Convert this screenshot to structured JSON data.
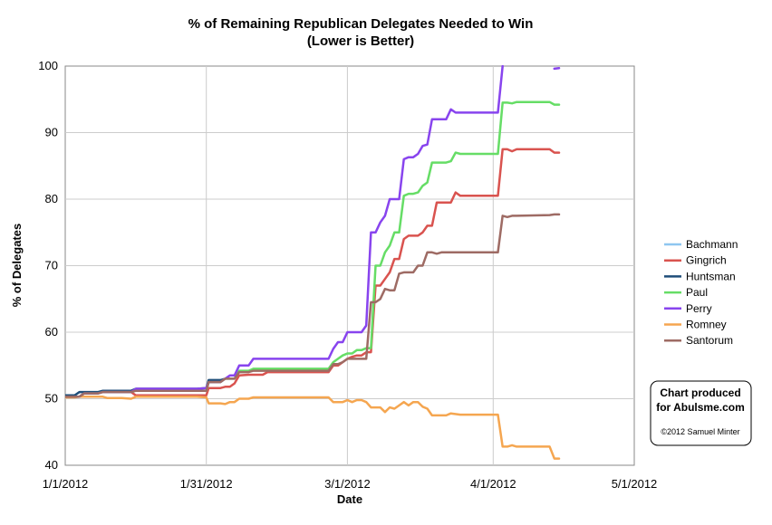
{
  "chart_data": {
    "type": "line",
    "title": "% of Remaining Republican Delegates Needed to Win",
    "subtitle": "(Lower is Better)",
    "xlabel": "Date",
    "ylabel": "% of Delegates",
    "x_start": "1/1/2012",
    "xlim": [
      0,
      121
    ],
    "ylim": [
      40,
      100
    ],
    "x_ticks": [
      {
        "label": "1/1/2012",
        "day": 0
      },
      {
        "label": "1/31/2012",
        "day": 30
      },
      {
        "label": "3/1/2012",
        "day": 60
      },
      {
        "label": "4/1/2012",
        "day": 91
      },
      {
        "label": "5/1/2012",
        "day": 121
      }
    ],
    "y_ticks": [
      40,
      50,
      60,
      70,
      80,
      90,
      100
    ],
    "grid": true,
    "legend_position": "right",
    "series": [
      {
        "name": "Bachmann",
        "color": "#8ec6f0",
        "points": []
      },
      {
        "name": "Gingrich",
        "color": "#d9534f",
        "points": [
          [
            0,
            50.3
          ],
          [
            3,
            50.3
          ],
          [
            4,
            50.8
          ],
          [
            7,
            50.8
          ],
          [
            8,
            51.0
          ],
          [
            14,
            51.0
          ],
          [
            15,
            50.5
          ],
          [
            28,
            50.5
          ],
          [
            30,
            50.5
          ],
          [
            30.5,
            51.6
          ],
          [
            33,
            51.6
          ],
          [
            34,
            51.8
          ],
          [
            35,
            51.8
          ],
          [
            36,
            52.3
          ],
          [
            37,
            53.5
          ],
          [
            39,
            53.6
          ],
          [
            42,
            53.6
          ],
          [
            43,
            54.0
          ],
          [
            56,
            54.0
          ],
          [
            57,
            55.0
          ],
          [
            58,
            55.0
          ],
          [
            59,
            55.5
          ],
          [
            60,
            56.0
          ],
          [
            61,
            56.3
          ],
          [
            62,
            56.5
          ],
          [
            63,
            56.5
          ],
          [
            64,
            57.0
          ],
          [
            65,
            57.0
          ],
          [
            66,
            67.0
          ],
          [
            67,
            67.0
          ],
          [
            68,
            68.0
          ],
          [
            69,
            69.0
          ],
          [
            70,
            71.0
          ],
          [
            71,
            71.0
          ],
          [
            72,
            74.0
          ],
          [
            73,
            74.5
          ],
          [
            75,
            74.5
          ],
          [
            76,
            75.0
          ],
          [
            77,
            76.0
          ],
          [
            78,
            76.0
          ],
          [
            79,
            79.5
          ],
          [
            82,
            79.5
          ],
          [
            83,
            81.0
          ],
          [
            84,
            80.5
          ],
          [
            90,
            80.5
          ],
          [
            92,
            80.5
          ],
          [
            93,
            87.5
          ],
          [
            94,
            87.5
          ],
          [
            95,
            87.2
          ],
          [
            96,
            87.5
          ],
          [
            103,
            87.5
          ],
          [
            104,
            87.0
          ],
          [
            105,
            87.0
          ]
        ]
      },
      {
        "name": "Huntsman",
        "color": "#1f4e79",
        "points": [
          [
            0,
            50.5
          ],
          [
            2,
            50.5
          ],
          [
            3,
            51.0
          ],
          [
            7,
            51.0
          ],
          [
            8,
            51.2
          ],
          [
            14,
            51.2
          ],
          [
            15,
            51.5
          ],
          [
            28,
            51.5
          ],
          [
            30,
            51.6
          ],
          [
            30.5,
            52.8
          ],
          [
            33,
            52.8
          ],
          [
            34,
            53.0
          ]
        ]
      },
      {
        "name": "Paul",
        "color": "#66dd66",
        "points": [
          [
            0,
            50.3
          ],
          [
            3,
            50.3
          ],
          [
            4,
            50.8
          ],
          [
            7,
            50.8
          ],
          [
            8,
            51.0
          ],
          [
            14,
            51.0
          ],
          [
            15,
            51.2
          ],
          [
            28,
            51.2
          ],
          [
            30,
            51.2
          ],
          [
            30.5,
            52.5
          ],
          [
            33,
            52.5
          ],
          [
            34,
            53.0
          ],
          [
            36,
            53.0
          ],
          [
            37,
            54.2
          ],
          [
            39,
            54.2
          ],
          [
            40,
            54.5
          ],
          [
            56,
            54.5
          ],
          [
            57,
            55.5
          ],
          [
            58,
            56.0
          ],
          [
            59,
            56.5
          ],
          [
            60,
            56.8
          ],
          [
            61,
            56.8
          ],
          [
            62,
            57.3
          ],
          [
            63,
            57.3
          ],
          [
            64,
            57.6
          ],
          [
            65,
            57.6
          ],
          [
            66,
            70.0
          ],
          [
            67,
            70.0
          ],
          [
            68,
            72.0
          ],
          [
            69,
            73.0
          ],
          [
            70,
            75.0
          ],
          [
            71,
            75.0
          ],
          [
            72,
            80.5
          ],
          [
            73,
            80.8
          ],
          [
            74,
            80.8
          ],
          [
            75,
            81.0
          ],
          [
            76,
            82.0
          ],
          [
            77,
            82.5
          ],
          [
            78,
            85.5
          ],
          [
            81,
            85.5
          ],
          [
            82,
            85.7
          ],
          [
            83,
            87.0
          ],
          [
            84,
            86.8
          ],
          [
            90,
            86.8
          ],
          [
            92,
            86.8
          ],
          [
            93,
            94.5
          ],
          [
            94,
            94.5
          ],
          [
            95,
            94.4
          ],
          [
            96,
            94.6
          ],
          [
            103,
            94.6
          ],
          [
            104,
            94.2
          ],
          [
            105,
            94.2
          ]
        ]
      },
      {
        "name": "Perry",
        "color": "#8844ee",
        "points": [
          [
            0,
            50.3
          ],
          [
            3,
            50.3
          ],
          [
            4,
            50.8
          ],
          [
            7,
            50.8
          ],
          [
            8,
            51.0
          ],
          [
            14,
            51.0
          ],
          [
            15,
            51.5
          ],
          [
            28,
            51.5
          ],
          [
            30,
            51.6
          ],
          [
            30.5,
            52.5
          ],
          [
            33,
            52.5
          ],
          [
            34,
            53.0
          ],
          [
            35,
            53.5
          ],
          [
            36,
            53.5
          ],
          [
            37,
            55.0
          ],
          [
            39,
            55.0
          ],
          [
            40,
            56.0
          ],
          [
            56,
            56.0
          ],
          [
            57,
            57.5
          ],
          [
            58,
            58.5
          ],
          [
            59,
            58.5
          ],
          [
            60,
            60.0
          ],
          [
            62,
            60.0
          ],
          [
            63,
            60.0
          ],
          [
            64,
            61.0
          ],
          [
            65,
            75.0
          ],
          [
            66,
            75.0
          ],
          [
            67,
            76.5
          ],
          [
            68,
            77.5
          ],
          [
            69,
            80.0
          ],
          [
            71,
            80.0
          ],
          [
            72,
            86.0
          ],
          [
            73,
            86.3
          ],
          [
            74,
            86.3
          ],
          [
            75,
            86.8
          ],
          [
            76,
            88.0
          ],
          [
            77,
            88.2
          ],
          [
            78,
            92.0
          ],
          [
            81,
            92.0
          ],
          [
            82,
            93.5
          ],
          [
            83,
            93.0
          ],
          [
            90,
            93.0
          ],
          [
            92,
            93.0
          ],
          [
            93,
            100.0
          ]
        ]
      },
      {
        "name": "Perry",
        "color": "#8844ee",
        "points": [
          [
            104,
            99.6
          ],
          [
            105,
            99.7
          ]
        ],
        "continuation": true
      },
      {
        "name": "Romney",
        "color": "#f5a650",
        "points": [
          [
            0,
            50.2
          ],
          [
            2,
            50.2
          ],
          [
            3,
            50.3
          ],
          [
            8,
            50.3
          ],
          [
            9,
            50.1
          ],
          [
            12,
            50.1
          ],
          [
            14,
            50.0
          ],
          [
            15,
            50.3
          ],
          [
            28,
            50.3
          ],
          [
            30,
            50.2
          ],
          [
            30.5,
            49.3
          ],
          [
            33,
            49.3
          ],
          [
            34,
            49.2
          ],
          [
            35,
            49.5
          ],
          [
            36,
            49.5
          ],
          [
            37,
            50.0
          ],
          [
            39,
            50.0
          ],
          [
            40,
            50.2
          ],
          [
            56,
            50.2
          ],
          [
            57,
            49.5
          ],
          [
            59,
            49.5
          ],
          [
            60,
            49.8
          ],
          [
            61,
            49.5
          ],
          [
            62,
            49.8
          ],
          [
            63,
            49.8
          ],
          [
            64,
            49.5
          ],
          [
            65,
            48.7
          ],
          [
            67,
            48.7
          ],
          [
            68,
            48.0
          ],
          [
            69,
            48.7
          ],
          [
            70,
            48.5
          ],
          [
            71,
            49.0
          ],
          [
            72,
            49.5
          ],
          [
            73,
            49.0
          ],
          [
            74,
            49.5
          ],
          [
            75,
            49.5
          ],
          [
            76,
            48.8
          ],
          [
            77,
            48.5
          ],
          [
            78,
            47.5
          ],
          [
            81,
            47.5
          ],
          [
            82,
            47.8
          ],
          [
            84,
            47.6
          ],
          [
            90,
            47.6
          ],
          [
            92,
            47.6
          ],
          [
            93,
            42.8
          ],
          [
            94,
            42.8
          ],
          [
            95,
            43.0
          ],
          [
            96,
            42.8
          ],
          [
            103,
            42.8
          ],
          [
            104,
            41.0
          ],
          [
            105,
            41.0
          ]
        ]
      },
      {
        "name": "Santorum",
        "color": "#9e6b64",
        "points": [
          [
            0,
            50.3
          ],
          [
            3,
            50.3
          ],
          [
            4,
            50.8
          ],
          [
            7,
            50.8
          ],
          [
            8,
            51.0
          ],
          [
            14,
            51.0
          ],
          [
            15,
            51.2
          ],
          [
            28,
            51.2
          ],
          [
            30,
            51.2
          ],
          [
            30.5,
            52.5
          ],
          [
            33,
            52.5
          ],
          [
            34,
            53.0
          ],
          [
            36,
            53.0
          ],
          [
            37,
            54.0
          ],
          [
            39,
            54.0
          ],
          [
            40,
            54.2
          ],
          [
            56,
            54.2
          ],
          [
            57,
            55.2
          ],
          [
            58,
            55.2
          ],
          [
            59,
            55.5
          ],
          [
            60,
            56.0
          ],
          [
            61,
            56.0
          ],
          [
            62,
            56.0
          ],
          [
            63,
            56.0
          ],
          [
            64,
            56.0
          ],
          [
            65,
            64.5
          ],
          [
            66,
            64.5
          ],
          [
            67,
            65.0
          ],
          [
            68,
            66.5
          ],
          [
            69,
            66.3
          ],
          [
            70,
            66.3
          ],
          [
            71,
            68.8
          ],
          [
            72,
            69.0
          ],
          [
            74,
            69.0
          ],
          [
            75,
            70.0
          ],
          [
            76,
            70.0
          ],
          [
            77,
            72.0
          ],
          [
            78,
            72.0
          ],
          [
            79,
            71.8
          ],
          [
            80,
            72.0
          ],
          [
            90,
            72.0
          ],
          [
            92,
            72.0
          ],
          [
            93,
            77.5
          ],
          [
            94,
            77.3
          ],
          [
            95,
            77.5
          ],
          [
            96,
            77.5
          ],
          [
            103,
            77.6
          ],
          [
            104,
            77.7
          ],
          [
            105,
            77.7
          ]
        ]
      }
    ],
    "legend": [
      "Bachmann",
      "Gingrich",
      "Huntsman",
      "Paul",
      "Perry",
      "Romney",
      "Santorum"
    ]
  },
  "credit": {
    "line1": "Chart produced",
    "line2": "for Abulsme.com",
    "line3": "©2012 Samuel Minter"
  }
}
